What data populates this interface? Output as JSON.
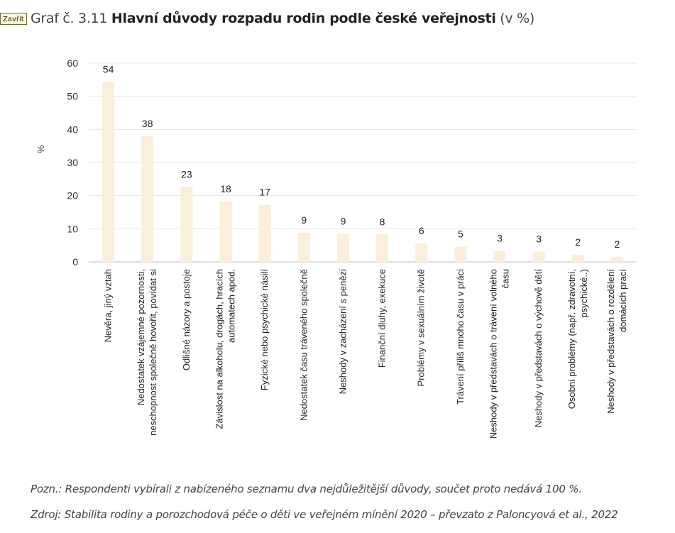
{
  "close_button": {
    "label": "Zavřít"
  },
  "title": {
    "prefix": "Graf č. 3.11",
    "main": "Hlavní důvody rozpadu rodin podle české veřejnosti",
    "suffix": "(v %)"
  },
  "chart_data": {
    "type": "bar",
    "title": "Hlavní důvody rozpadu rodin podle české veřejnosti (v %)",
    "xlabel": "",
    "ylabel": "%",
    "ylim": [
      0,
      60
    ],
    "yticks": [
      0,
      10,
      20,
      30,
      40,
      50,
      60
    ],
    "grid": true,
    "bar_color": "#fbeedb",
    "categories": [
      "Nevěra, jiný vztah",
      "Nedostatek vzájemné pozornosti, neschopnost společně hovořit, povídat si",
      "Odlišné názory a postoje",
      "Závislost na alkoholu, drogách, hracích automatech apod.",
      "Fyzické nebo psychické násilí",
      "Nedostatek času tráveného společně",
      "Neshody v zacházení s penězi",
      "Finanční dluhy, exekuce",
      "Problémy v sexuálním životě",
      "Trávení příliš mnoho času v práci",
      "Neshody v představách o trávení volného času",
      "Neshody v představách o výchově dětí",
      "Osobní problémy (např. zdravotní, psychické..)",
      "Neshody v představách o rozdělení domácích prací"
    ],
    "category_lines": [
      [
        "Nevěra, jiný vztah"
      ],
      [
        "Nedostatek vzájemné pozornosti,",
        "neschopnost společně hovořit, povídat si"
      ],
      [
        "Odlišné názory a postoje"
      ],
      [
        "Závislost na alkoholu, drogách, hracích",
        "automatech apod."
      ],
      [
        "Fyzické nebo psychické násilí"
      ],
      [
        "Nedostatek času tráveného společně"
      ],
      [
        "Neshody v zacházení s penězi"
      ],
      [
        "Finanční dluhy, exekuce"
      ],
      [
        "Problémy v sexuálním životě"
      ],
      [
        "Trávení příliš mnoho času v práci"
      ],
      [
        "Neshody v představách o trávení volného",
        "času"
      ],
      [
        "Neshody v představách o výchově dětí"
      ],
      [
        "Osobní problémy (např. zdravotní,",
        "psychické..)"
      ],
      [
        "Neshody v představách o rozdělení",
        "domácích prací"
      ]
    ],
    "values": [
      54.3,
      37.9,
      22.6,
      18.2,
      17.2,
      8.8,
      8.5,
      8.3,
      5.6,
      4.6,
      3.3,
      3.1,
      2.1,
      1.5
    ],
    "value_labels": [
      "54",
      "38",
      "23",
      "18",
      "17",
      "9",
      "9",
      "8",
      "6",
      "5",
      "3",
      "3",
      "2",
      "2"
    ]
  },
  "notes": {
    "pozn": "Pozn.: Respondenti vybírali z nabízeného seznamu dva nejdůležitější důvody, součet proto nedává 100 %.",
    "zdroj": "Zdroj: Stabilita rodiny a porozchodová péče o děti ve veřejném mínění 2020 – převzato z Paloncyová et al., 2022"
  }
}
